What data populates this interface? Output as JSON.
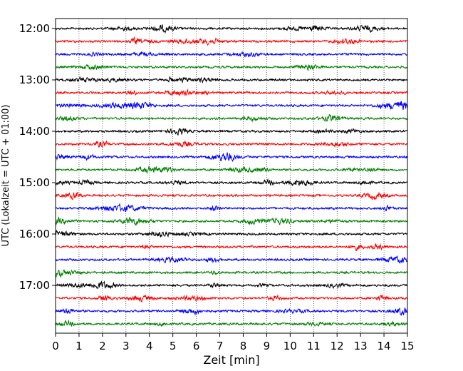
{
  "chart_data": {
    "type": "line",
    "title": "",
    "xlabel": "Zeit  [min]",
    "ylabel": "UTC (Lokalzeit = UTC + 01:00)",
    "x_ticks": [
      0,
      1,
      2,
      3,
      4,
      5,
      6,
      7,
      8,
      9,
      10,
      11,
      12,
      13,
      14,
      15
    ],
    "xlim": [
      0,
      15
    ],
    "y_ticks": [
      "12:00",
      "13:00",
      "14:00",
      "15:00",
      "16:00",
      "17:00"
    ],
    "trace_start_times": [
      "12:00",
      "12:15",
      "12:30",
      "12:45",
      "13:00",
      "13:15",
      "13:30",
      "13:45",
      "14:00",
      "14:15",
      "14:30",
      "14:45",
      "15:00",
      "15:15",
      "15:30",
      "15:45",
      "16:00",
      "16:15",
      "16:30",
      "16:45",
      "17:00",
      "17:15",
      "17:30",
      "17:45"
    ],
    "trace_colors": [
      "#000000",
      "#ff0000",
      "#0000ff",
      "#008000"
    ],
    "trace_minutes": 15,
    "grid_x": true
  }
}
